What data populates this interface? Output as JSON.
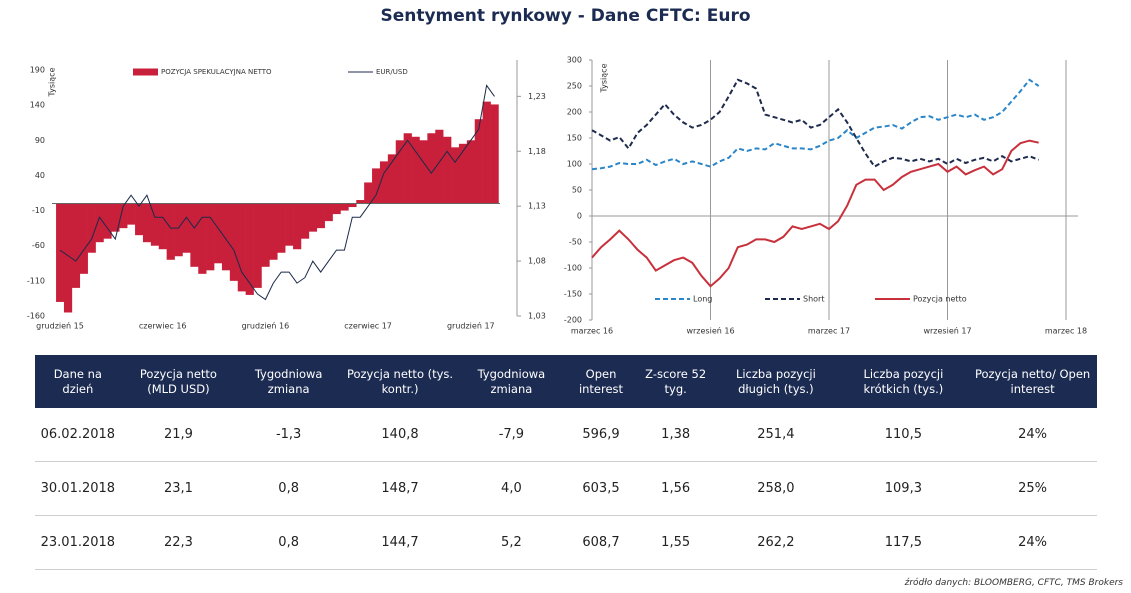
{
  "title": "Sentyment rynkowy - Dane CFTC:  Euro",
  "chart_data": [
    {
      "type": "combo",
      "y_label": "Tysiące",
      "categories": [
        "grudzień 15",
        null,
        null,
        null,
        null,
        null,
        null,
        null,
        null,
        null,
        null,
        null,
        null,
        "czerwiec 16",
        null,
        null,
        null,
        null,
        null,
        null,
        null,
        null,
        null,
        null,
        null,
        null,
        "grudzień 16",
        null,
        null,
        null,
        null,
        null,
        null,
        null,
        null,
        null,
        null,
        null,
        null,
        "czerwiec 17",
        null,
        null,
        null,
        null,
        null,
        null,
        null,
        null,
        null,
        null,
        null,
        null,
        "grudzień 17",
        null,
        null,
        null
      ],
      "ylim": [
        -160,
        190
      ],
      "yticks": [
        190,
        140,
        90,
        40,
        -10,
        -60,
        -110,
        -160
      ],
      "y2lim": [
        1.03,
        1.254
      ],
      "y2ticks": [
        {
          "value": 1.23,
          "label": "1,23"
        },
        {
          "value": 1.18,
          "label": "1,18"
        },
        {
          "value": 1.13,
          "label": "1,13"
        },
        {
          "value": 1.08,
          "label": "1,08"
        },
        {
          "value": 1.03,
          "label": "1,03"
        }
      ],
      "series": [
        {
          "name": "POZYCJA SPEKULACYJNA NETTO",
          "type": "bar",
          "color": "#c8203a",
          "values": [
            -140,
            -155,
            -120,
            -100,
            -70,
            -55,
            -50,
            -40,
            -35,
            -30,
            -45,
            -55,
            -60,
            -65,
            -80,
            -75,
            -70,
            -90,
            -100,
            -95,
            -85,
            -95,
            -110,
            -125,
            -130,
            -120,
            -90,
            -80,
            -70,
            -60,
            -65,
            -50,
            -40,
            -35,
            -25,
            -15,
            -10,
            -5,
            5,
            30,
            50,
            60,
            70,
            90,
            100,
            95,
            90,
            100,
            105,
            95,
            80,
            85,
            90,
            120,
            145,
            141
          ]
        },
        {
          "name": "EUR/USD",
          "type": "line",
          "axis": "y2",
          "color": "#1b2a4a",
          "values": [
            1.09,
            1.085,
            1.08,
            1.09,
            1.1,
            1.12,
            1.11,
            1.1,
            1.13,
            1.14,
            1.13,
            1.14,
            1.12,
            1.12,
            1.11,
            1.11,
            1.12,
            1.11,
            1.12,
            1.12,
            1.11,
            1.1,
            1.09,
            1.07,
            1.06,
            1.05,
            1.045,
            1.06,
            1.07,
            1.07,
            1.06,
            1.065,
            1.08,
            1.07,
            1.08,
            1.09,
            1.09,
            1.12,
            1.12,
            1.13,
            1.14,
            1.16,
            1.17,
            1.18,
            1.19,
            1.18,
            1.17,
            1.16,
            1.17,
            1.18,
            1.17,
            1.18,
            1.19,
            1.2,
            1.24,
            1.23
          ]
        }
      ]
    },
    {
      "type": "line",
      "y_label": "Tysiące",
      "xgrid": true,
      "categories": [
        "marzec 16",
        null,
        null,
        null,
        null,
        null,
        null,
        null,
        null,
        null,
        null,
        null,
        null,
        "wrzesień 16",
        null,
        null,
        null,
        null,
        null,
        null,
        null,
        null,
        null,
        null,
        null,
        null,
        "marzec 17",
        null,
        null,
        null,
        null,
        null,
        null,
        null,
        null,
        null,
        null,
        null,
        null,
        "wrzesień 17",
        null,
        null,
        null,
        null,
        null,
        null,
        null,
        null,
        null,
        null,
        null,
        null,
        "marzec 18"
      ],
      "ylim": [
        -200,
        300
      ],
      "yticks": [
        300,
        250,
        200,
        150,
        100,
        50,
        0,
        -50,
        -100,
        -150,
        -200
      ],
      "series": [
        {
          "name": "Long",
          "type": "line",
          "dash": "dashed",
          "color": "#2a86c8",
          "values": [
            90,
            92,
            95,
            102,
            100,
            100,
            108,
            98,
            105,
            110,
            100,
            105,
            100,
            95,
            105,
            112,
            130,
            125,
            130,
            128,
            140,
            135,
            130,
            130,
            128,
            135,
            145,
            150,
            165,
            150,
            160,
            170,
            172,
            175,
            168,
            180,
            190,
            192,
            185,
            190,
            195,
            190,
            195,
            185,
            190,
            200,
            220,
            240,
            262,
            250,
            null,
            null,
            null
          ]
        },
        {
          "name": "Short",
          "type": "line",
          "dash": "dashed",
          "color": "#1e2b4d",
          "values": [
            165,
            155,
            145,
            152,
            130,
            160,
            175,
            195,
            215,
            195,
            180,
            170,
            175,
            185,
            200,
            230,
            262,
            255,
            245,
            195,
            190,
            185,
            180,
            185,
            170,
            175,
            190,
            205,
            180,
            150,
            120,
            95,
            105,
            112,
            110,
            105,
            110,
            105,
            110,
            100,
            110,
            102,
            108,
            112,
            105,
            115,
            105,
            110,
            115,
            108,
            null,
            null,
            null
          ]
        },
        {
          "name": "Pozycja netto",
          "type": "line",
          "color": "#c8303c",
          "values": [
            -80,
            -60,
            -45,
            -28,
            -45,
            -65,
            -80,
            -105,
            -95,
            -85,
            -80,
            -90,
            -115,
            -135,
            -120,
            -100,
            -60,
            -55,
            -45,
            -45,
            -50,
            -40,
            -20,
            -25,
            -20,
            -15,
            -25,
            -10,
            20,
            60,
            70,
            70,
            50,
            60,
            75,
            85,
            90,
            95,
            100,
            85,
            95,
            80,
            88,
            95,
            80,
            90,
            125,
            140,
            145,
            141,
            null,
            null,
            null
          ]
        }
      ]
    }
  ],
  "table": {
    "columns": [
      "Dane na dzień",
      "Pozycja netto (MLD USD)",
      "Tygodniowa zmiana",
      "Pozycja netto (tys. kontr.)",
      "Tygodniowa zmiana",
      "Open interest",
      "Z-score 52 tyg.",
      "Liczba pozycji długich (tys.)",
      "Liczba pozycji krótkich (tys.)",
      "Pozycja netto/ Open interest"
    ],
    "rows": [
      [
        "06.02.2018",
        "21,9",
        "-1,3",
        "140,8",
        "-7,9",
        "596,9",
        "1,38",
        "251,4",
        "110,5",
        "24%"
      ],
      [
        "30.01.2018",
        "23,1",
        "0,8",
        "148,7",
        "4,0",
        "603,5",
        "1,56",
        "258,0",
        "109,3",
        "25%"
      ],
      [
        "23.01.2018",
        "22,3",
        "0,8",
        "144,7",
        "5,2",
        "608,7",
        "1,55",
        "262,2",
        "117,5",
        "24%"
      ]
    ]
  },
  "source": "źródło danych: BLOOMBERG, CFTC, TMS Brokers"
}
